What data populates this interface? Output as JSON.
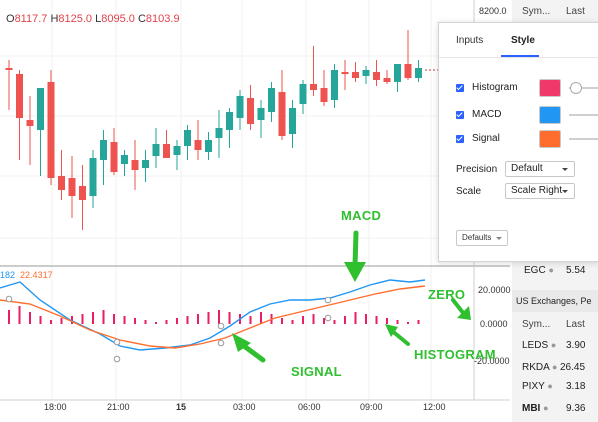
{
  "ohlc": {
    "o_key": "O",
    "o": "8117.7",
    "h_key": "H",
    "h": "8125.0",
    "l_key": "L",
    "l": "8095.0",
    "c_key": "C",
    "c": "8103.9"
  },
  "price_axis": {
    "top_label": "8200.0"
  },
  "indicator": {
    "partial_value": "182",
    "value": "22.4317"
  },
  "indicator_axis": [
    "20.0000",
    "0.0000",
    "-20.0000"
  ],
  "time_axis": [
    "18:00",
    "21:00",
    "15",
    "03:00",
    "06:00",
    "09:00",
    "12:00"
  ],
  "settings_panel": {
    "tabs": [
      {
        "label": "Inputs"
      },
      {
        "label": "Style"
      }
    ],
    "rows": [
      {
        "label": "Histogram",
        "color": "#f0386b"
      },
      {
        "label": "MACD",
        "color": "#2196f3"
      },
      {
        "label": "Signal",
        "color": "#ff6d2e"
      }
    ],
    "precision": {
      "label": "Precision",
      "value": "Default"
    },
    "scale": {
      "label": "Scale",
      "value": "Scale Right"
    },
    "defaults_label": "Defaults"
  },
  "watchlist": {
    "header": {
      "symbol": "Sym...",
      "last": "Last"
    },
    "rows_top": [
      {
        "symbol": "EGC",
        "last": "5.54"
      }
    ],
    "section_title": "US Exchanges, Pe",
    "header2": {
      "symbol": "Sym...",
      "last": "Last"
    },
    "rows": [
      {
        "symbol": "LEDS",
        "last": "3.90"
      },
      {
        "symbol": "RKDA",
        "last": "26.45"
      },
      {
        "symbol": "PIXY",
        "last": "3.18"
      },
      {
        "symbol": "MBI",
        "last": "9.36"
      }
    ]
  },
  "annotations": {
    "macd": "MACD",
    "zero": "ZERO",
    "histogram": "HISTOGRAM",
    "signal": "SIGNAL"
  },
  "colors": {
    "up": "#26a69a",
    "down": "#ef5350",
    "macd": "#2196f3",
    "signal": "#ff6d2e",
    "histogram": "#e91e63",
    "annotation": "#2fbf2f"
  }
}
